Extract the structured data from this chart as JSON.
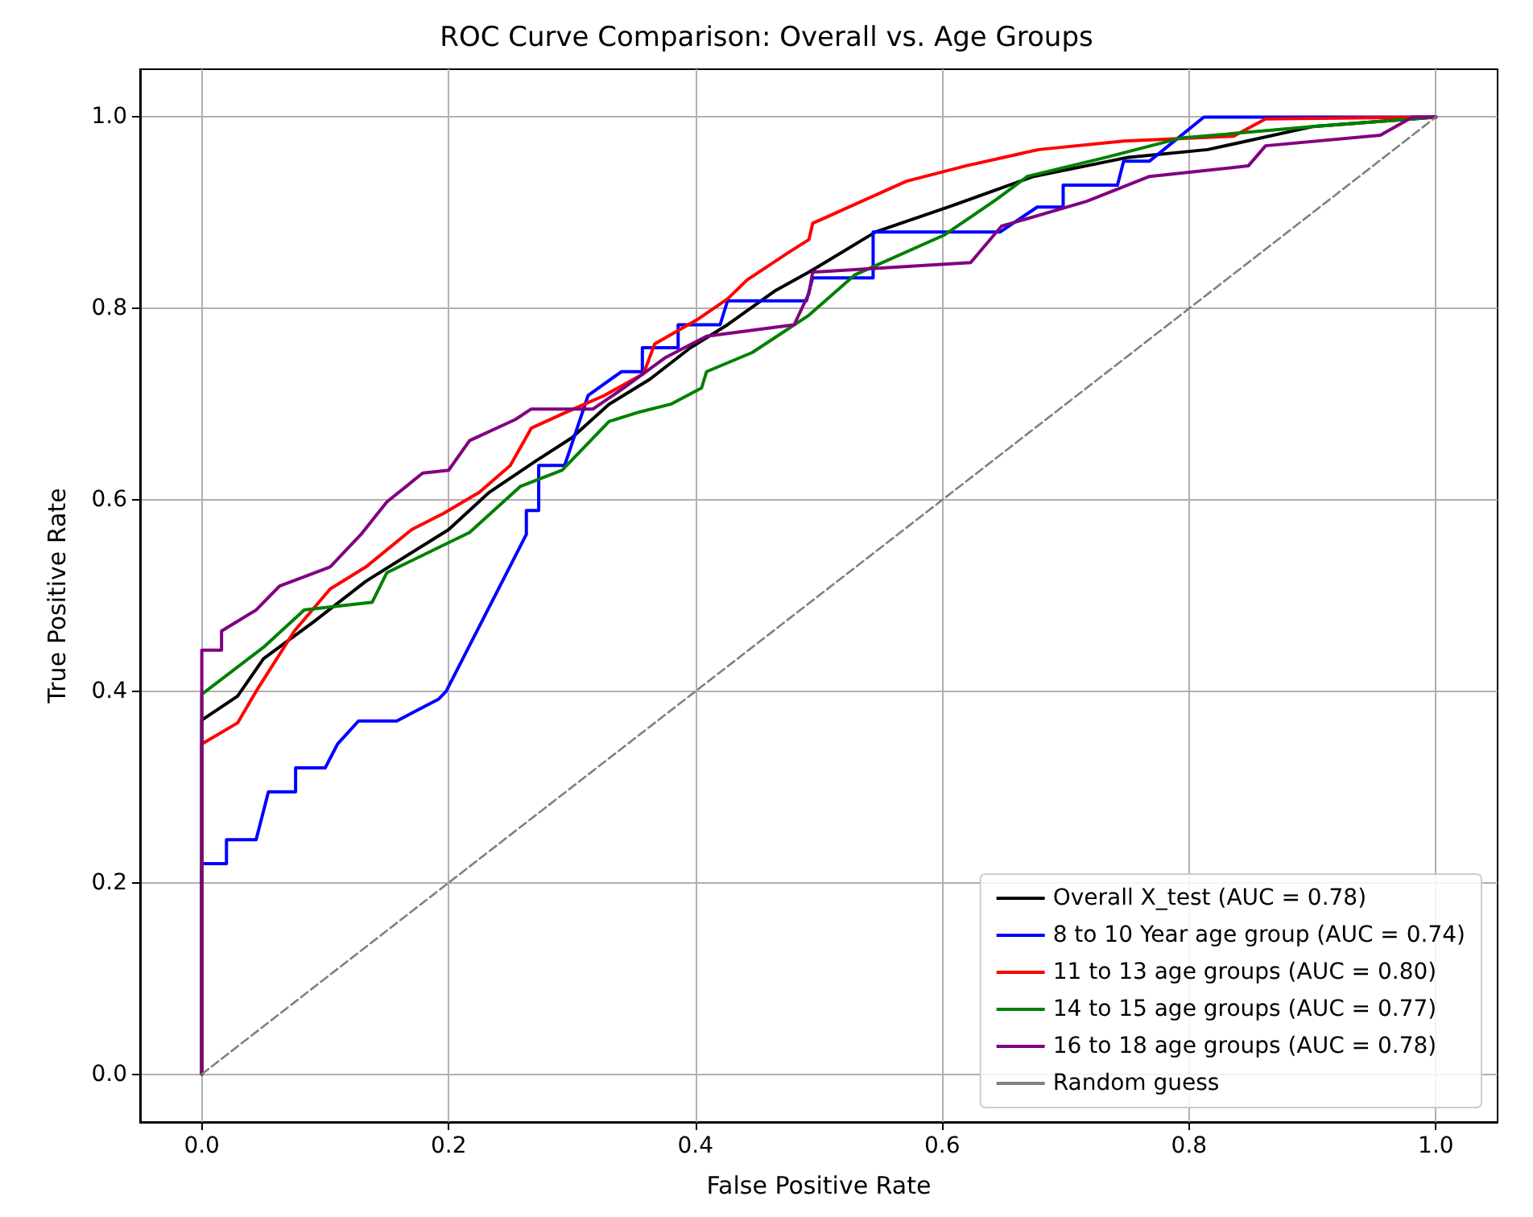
{
  "chart_data": {
    "type": "line",
    "title": "ROC Curve Comparison: Overall vs. Age Groups",
    "xlabel": "False Positive Rate",
    "ylabel": "True Positive Rate",
    "xlim": [
      -0.05,
      1.05
    ],
    "ylim": [
      -0.05,
      1.05
    ],
    "xticks": [
      {
        "value": 0,
        "label": "0.0"
      },
      {
        "value": 0.2,
        "label": "0.2"
      },
      {
        "value": 0.4,
        "label": "0.4"
      },
      {
        "value": 0.6,
        "label": "0.6"
      },
      {
        "value": 0.8,
        "label": "0.8"
      },
      {
        "value": 1,
        "label": "1.0"
      }
    ],
    "yticks": [
      {
        "value": 0,
        "label": "0.0"
      },
      {
        "value": 0.2,
        "label": "0.2"
      },
      {
        "value": 0.4,
        "label": "0.4"
      },
      {
        "value": 0.6,
        "label": "0.6"
      },
      {
        "value": 0.8,
        "label": "0.8"
      },
      {
        "value": 1,
        "label": "1.0"
      }
    ],
    "grid": true,
    "legend": "bottom right",
    "marker": "none",
    "series": [
      {
        "name": "Overall X_test (AUC = 0.78)",
        "color": "#000000",
        "x": [
          0,
          0,
          0.029,
          0.05,
          0.091,
          0.133,
          0.2,
          0.233,
          0.271,
          0.3,
          0.33,
          0.363,
          0.396,
          0.426,
          0.464,
          0.492,
          0.546,
          0.605,
          0.674,
          0.751,
          0.815,
          0.9,
          1
        ],
        "values": [
          0,
          0.37,
          0.395,
          0.434,
          0.473,
          0.515,
          0.569,
          0.608,
          0.641,
          0.665,
          0.7,
          0.726,
          0.759,
          0.783,
          0.818,
          0.838,
          0.88,
          0.906,
          0.938,
          0.958,
          0.966,
          0.99,
          1
        ]
      },
      {
        "name": "8 to 10 Year age group (AUC = 0.74)",
        "color": "#0000ff",
        "x": [
          0,
          0,
          0.02,
          0.02,
          0.044,
          0.054,
          0.076,
          0.076,
          0.1,
          0.11,
          0.127,
          0.158,
          0.192,
          0.198,
          0.263,
          0.263,
          0.273,
          0.273,
          0.294,
          0.313,
          0.34,
          0.357,
          0.357,
          0.386,
          0.386,
          0.42,
          0.426,
          0.49,
          0.495,
          0.544,
          0.544,
          0.647,
          0.677,
          0.698,
          0.698,
          0.742,
          0.747,
          0.768,
          0.812,
          1
        ],
        "values": [
          0,
          0.22,
          0.22,
          0.245,
          0.245,
          0.295,
          0.295,
          0.32,
          0.32,
          0.345,
          0.369,
          0.369,
          0.392,
          0.4,
          0.564,
          0.589,
          0.589,
          0.636,
          0.636,
          0.709,
          0.734,
          0.734,
          0.759,
          0.759,
          0.783,
          0.783,
          0.808,
          0.808,
          0.832,
          0.832,
          0.88,
          0.88,
          0.906,
          0.906,
          0.929,
          0.929,
          0.954,
          0.954,
          1,
          1
        ]
      },
      {
        "name": "11 to 13 age groups (AUC = 0.80)",
        "color": "#ff0000",
        "x": [
          0,
          0,
          0.029,
          0.044,
          0.075,
          0.104,
          0.133,
          0.17,
          0.196,
          0.225,
          0.25,
          0.267,
          0.296,
          0.326,
          0.358,
          0.367,
          0.401,
          0.426,
          0.442,
          0.476,
          0.492,
          0.495,
          0.571,
          0.619,
          0.678,
          0.747,
          0.836,
          0.862,
          1
        ],
        "values": [
          0,
          0.345,
          0.367,
          0.4,
          0.463,
          0.507,
          0.53,
          0.569,
          0.586,
          0.608,
          0.636,
          0.675,
          0.692,
          0.709,
          0.732,
          0.763,
          0.788,
          0.81,
          0.83,
          0.859,
          0.872,
          0.889,
          0.933,
          0.949,
          0.966,
          0.975,
          0.98,
          0.998,
          1
        ]
      },
      {
        "name": "14 to 15 age groups (AUC = 0.77)",
        "color": "#008000",
        "x": [
          0,
          0,
          0.05,
          0.083,
          0.138,
          0.15,
          0.217,
          0.258,
          0.292,
          0.33,
          0.355,
          0.38,
          0.405,
          0.409,
          0.446,
          0.492,
          0.529,
          0.602,
          0.644,
          0.669,
          0.733,
          0.793,
          0.9,
          1
        ],
        "values": [
          0,
          0.397,
          0.446,
          0.485,
          0.493,
          0.524,
          0.566,
          0.614,
          0.631,
          0.682,
          0.692,
          0.7,
          0.717,
          0.734,
          0.754,
          0.793,
          0.835,
          0.877,
          0.914,
          0.938,
          0.958,
          0.978,
          0.99,
          1
        ]
      },
      {
        "name": "16 to 18 age groups (AUC = 0.78)",
        "color": "#800080",
        "x": [
          0,
          0,
          0.016,
          0.016,
          0.044,
          0.063,
          0.104,
          0.129,
          0.15,
          0.179,
          0.2,
          0.217,
          0.254,
          0.267,
          0.317,
          0.342,
          0.376,
          0.409,
          0.48,
          0.492,
          0.495,
          0.623,
          0.648,
          0.717,
          0.768,
          0.848,
          0.862,
          0.955,
          0.981,
          1
        ],
        "values": [
          0,
          0.443,
          0.443,
          0.463,
          0.485,
          0.51,
          0.53,
          0.564,
          0.598,
          0.628,
          0.631,
          0.662,
          0.684,
          0.695,
          0.695,
          0.717,
          0.749,
          0.771,
          0.783,
          0.816,
          0.838,
          0.848,
          0.886,
          0.912,
          0.938,
          0.949,
          0.97,
          0.981,
          1,
          1
        ]
      },
      {
        "name": "Random guess",
        "color": "#808080",
        "line_style": "dashed",
        "x": [
          0,
          1
        ],
        "values": [
          0,
          1
        ]
      }
    ]
  }
}
